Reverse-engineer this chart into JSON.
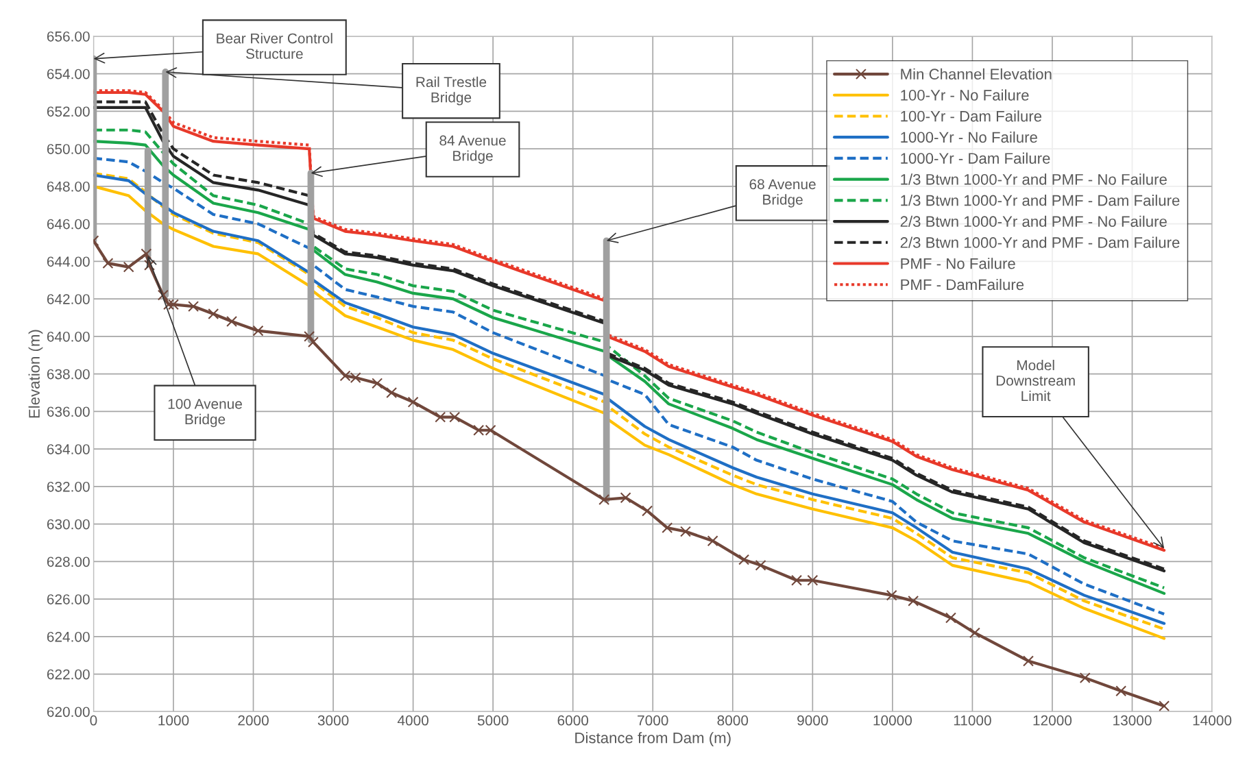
{
  "chart_data": {
    "type": "line",
    "xlabel": "Distance from Dam (m)",
    "ylabel": "Elevation (m)",
    "xlim": [
      0,
      14000
    ],
    "xticks": [
      0,
      1000,
      2000,
      3000,
      4000,
      5000,
      6000,
      7000,
      8000,
      9000,
      10000,
      11000,
      12000,
      13000,
      14000
    ],
    "ylim": [
      620,
      656
    ],
    "yticks": [
      {
        "value": 620,
        "label": "620.00"
      },
      {
        "value": 622,
        "label": "622.00"
      },
      {
        "value": 624,
        "label": "624.00"
      },
      {
        "value": 626,
        "label": "626.00"
      },
      {
        "value": 628,
        "label": "628.00"
      },
      {
        "value": 630,
        "label": "630.00"
      },
      {
        "value": 632,
        "label": "632.00"
      },
      {
        "value": 634,
        "label": "634.00"
      },
      {
        "value": 636,
        "label": "636.00"
      },
      {
        "value": 638,
        "label": "638.00"
      },
      {
        "value": 640,
        "label": "640.00"
      },
      {
        "value": 642,
        "label": "642.00"
      },
      {
        "value": 644,
        "label": "644.00"
      },
      {
        "value": 646,
        "label": "646.00"
      },
      {
        "value": 648,
        "label": "648.00"
      },
      {
        "value": 650,
        "label": "650.00"
      },
      {
        "value": 652,
        "label": "652.00"
      },
      {
        "value": 654,
        "label": "654.00"
      },
      {
        "value": 656,
        "label": "656.00"
      }
    ],
    "grid": true,
    "legend": "top right",
    "x": [
      0,
      440,
      650,
      870,
      1000,
      1500,
      2060,
      2700,
      2750,
      3150,
      3550,
      4000,
      4500,
      5000,
      6400,
      6430,
      6900,
      7200,
      8000,
      8300,
      9000,
      10000,
      10300,
      10750,
      11700,
      12400,
      13400
    ],
    "series": [
      {
        "name": "Min Channel Elevation",
        "color": "#70473b",
        "marker": "cross",
        "line_style": "solid",
        "x": [
          0,
          180,
          440,
          660,
          700,
          870,
          940,
          1000,
          1250,
          1500,
          1730,
          2060,
          2700,
          2750,
          3150,
          3280,
          3550,
          3730,
          4000,
          4340,
          4520,
          4820,
          4970,
          6390,
          6660,
          6930,
          7180,
          7410,
          7750,
          8140,
          8350,
          8800,
          9000,
          9990,
          10260,
          10730,
          11030,
          11700,
          12410,
          12860,
          13400
        ],
        "values": [
          645.1,
          643.9,
          643.7,
          644.4,
          643.8,
          642.2,
          641.7,
          641.7,
          641.6,
          641.2,
          640.8,
          640.3,
          640.0,
          639.7,
          637.9,
          637.8,
          637.5,
          637.0,
          636.5,
          635.7,
          635.7,
          635.0,
          635.0,
          631.3,
          631.4,
          630.7,
          629.8,
          629.6,
          629.1,
          628.1,
          627.8,
          627.0,
          627.0,
          626.2,
          625.9,
          625.0,
          624.2,
          622.7,
          621.8,
          621.1,
          620.3
        ]
      },
      {
        "name": "100-Yr - No Failure",
        "color": "#ffc000",
        "line_style": "solid",
        "values": [
          648.0,
          647.5,
          646.7,
          646.0,
          645.7,
          644.8,
          644.4,
          642.7,
          642.4,
          641.1,
          640.5,
          639.8,
          639.3,
          638.3,
          635.9,
          635.6,
          634.2,
          633.7,
          632.1,
          631.6,
          630.8,
          629.8,
          629.1,
          627.8,
          626.9,
          625.5,
          623.9
        ]
      },
      {
        "name": "100-Yr - Dam Failure",
        "color": "#ffc000",
        "line_style": "dashed",
        "values": [
          648.7,
          648.4,
          647.7,
          646.9,
          646.5,
          645.5,
          645.0,
          643.3,
          642.9,
          641.6,
          641.0,
          640.2,
          639.8,
          638.8,
          636.5,
          636.3,
          634.8,
          634.1,
          632.6,
          632.1,
          631.3,
          630.3,
          629.5,
          628.2,
          627.4,
          625.9,
          624.4
        ]
      },
      {
        "name": "1000-Yr - No Failure",
        "color": "#1f6fc5",
        "line_style": "solid",
        "values": [
          648.6,
          648.3,
          647.6,
          647.0,
          646.6,
          645.6,
          645.1,
          643.4,
          643.0,
          641.8,
          641.2,
          640.5,
          640.1,
          639.1,
          636.9,
          636.7,
          635.2,
          634.5,
          633.0,
          632.5,
          631.6,
          630.6,
          629.8,
          628.5,
          627.6,
          626.2,
          624.7
        ]
      },
      {
        "name": "1000-Yr - Dam Failure",
        "color": "#1f6fc5",
        "line_style": "dashed",
        "values": [
          649.5,
          649.3,
          648.8,
          648.2,
          647.9,
          646.5,
          646.0,
          644.7,
          643.8,
          642.5,
          642.1,
          641.6,
          641.3,
          640.2,
          637.9,
          637.7,
          636.9,
          635.3,
          634.1,
          633.4,
          632.4,
          631.2,
          630.1,
          629.1,
          628.4,
          626.8,
          625.2
        ]
      },
      {
        "name": "1/3 Btwn 1000-Yr and PMF - No Failure",
        "color": "#1aa64a",
        "line_style": "solid",
        "values": [
          650.4,
          650.3,
          650.2,
          649.1,
          648.6,
          647.1,
          646.6,
          645.7,
          644.6,
          643.3,
          642.9,
          642.3,
          642.0,
          641.0,
          639.2,
          639.0,
          637.6,
          636.4,
          635.1,
          634.5,
          633.5,
          632.1,
          631.3,
          630.3,
          629.5,
          628.0,
          626.3
        ]
      },
      {
        "name": "1/3 Btwn 1000-Yr and PMF - Dam Failure",
        "color": "#1aa64a",
        "line_style": "dashed",
        "values": [
          651.0,
          651.0,
          650.9,
          649.8,
          649.2,
          647.5,
          647.0,
          646.0,
          644.8,
          643.6,
          643.3,
          642.7,
          642.4,
          641.4,
          639.7,
          639.5,
          637.9,
          636.7,
          635.5,
          634.9,
          633.8,
          632.4,
          631.6,
          630.6,
          629.8,
          628.2,
          626.6
        ]
      },
      {
        "name": "2/3 Btwn 1000-Yr and PMF - No Failure",
        "color": "#262626",
        "line_style": "solid",
        "values": [
          652.2,
          652.2,
          652.2,
          650.4,
          649.6,
          648.2,
          647.8,
          647.0,
          645.4,
          644.4,
          644.2,
          643.8,
          643.5,
          642.7,
          640.7,
          639.0,
          638.2,
          637.4,
          636.4,
          635.9,
          634.8,
          633.4,
          632.6,
          631.7,
          630.8,
          629.0,
          627.5
        ]
      },
      {
        "name": "2/3 Btwn 1000-Yr and PMF - Dam Failure",
        "color": "#262626",
        "line_style": "dashed",
        "values": [
          652.5,
          652.5,
          652.5,
          650.8,
          650.0,
          648.6,
          648.2,
          647.5,
          645.5,
          644.5,
          644.3,
          643.9,
          643.6,
          642.8,
          640.8,
          639.1,
          638.3,
          637.5,
          636.5,
          636.0,
          634.9,
          633.5,
          632.7,
          631.8,
          630.9,
          629.1,
          627.6
        ]
      },
      {
        "name": "PMF - No Failure",
        "color": "#e8392a",
        "line_style": "solid",
        "values": [
          653.0,
          653.0,
          652.9,
          652.0,
          651.2,
          650.4,
          650.2,
          650.0,
          646.3,
          645.6,
          645.4,
          645.1,
          644.8,
          644.0,
          641.9,
          640.0,
          639.2,
          638.4,
          637.3,
          636.9,
          635.8,
          634.4,
          633.6,
          632.9,
          631.8,
          630.1,
          628.6
        ]
      },
      {
        "name": "PMF - DamFailure",
        "color": "#e8392a",
        "line_style": "dotted",
        "values": [
          653.1,
          653.1,
          653.0,
          652.1,
          651.4,
          650.6,
          650.4,
          650.2,
          646.4,
          645.7,
          645.5,
          645.2,
          644.9,
          644.1,
          642.0,
          640.1,
          639.3,
          638.5,
          637.4,
          637.0,
          635.9,
          634.5,
          633.7,
          633.0,
          631.9,
          630.2,
          628.7
        ]
      },
      {
        "color": "#a0a0a0",
        "line_style": "solid",
        "x": [
          0,
          0
        ],
        "values": [
          645.1,
          654.8
        ]
      },
      {
        "color": "#a0a0a0",
        "line_style": "solid",
        "x": [
          680,
          680
        ],
        "values": [
          644.3,
          649.9
        ]
      },
      {
        "color": "#a0a0a0",
        "line_style": "solid",
        "x": [
          900,
          900
        ],
        "values": [
          642.2,
          654.1
        ]
      },
      {
        "color": "#a0a0a0",
        "line_style": "solid",
        "x": [
          2720,
          2720
        ],
        "values": [
          639.8,
          648.7
        ]
      },
      {
        "color": "#a0a0a0",
        "line_style": "solid",
        "x": [
          6420,
          6420
        ],
        "values": [
          631.3,
          645.1
        ]
      }
    ],
    "annotations": [
      {
        "text": "Bear River Control\nStructure",
        "x": 0,
        "y": 654.8
      },
      {
        "text": "Rail Trestle\nBridge",
        "x": 900,
        "y": 654.1
      },
      {
        "text": "84 Avenue\nBridge",
        "x": 2720,
        "y": 648.7
      },
      {
        "text": "100 Avenue\nBridge",
        "x": 680,
        "y": 644.3
      },
      {
        "text": "68 Avenue\nBridge",
        "x": 6420,
        "y": 645.1
      },
      {
        "text": "Model\nDownstream\nLimit",
        "x": 13400,
        "y": 628.7
      }
    ]
  }
}
